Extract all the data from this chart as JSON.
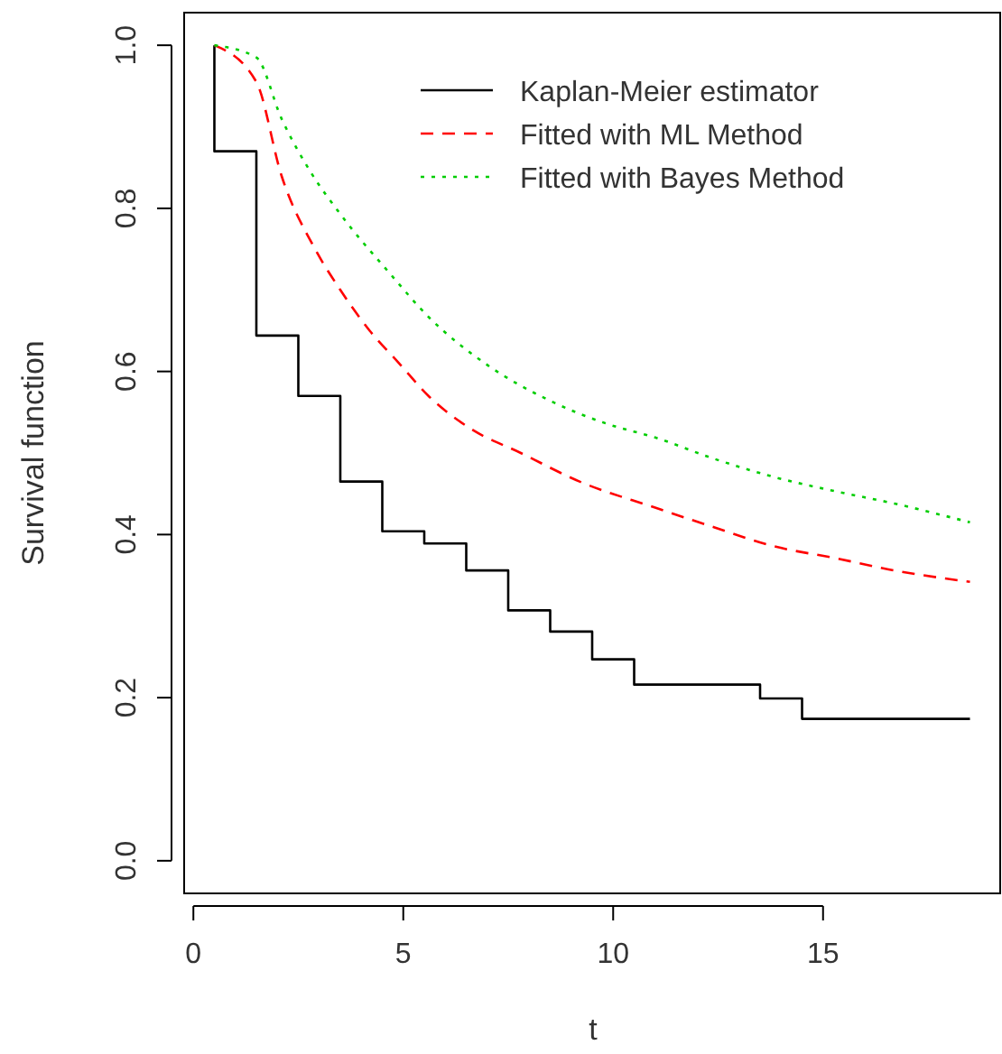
{
  "chart_data": {
    "type": "line",
    "xlabel": "t",
    "ylabel": "Survival function",
    "xlim": [
      -0.22,
      19.22
    ],
    "ylim": [
      -0.04,
      1.04
    ],
    "xticks": [
      0,
      5,
      10,
      15
    ],
    "yticks": [
      {
        "value": 0,
        "label": "0.0"
      },
      {
        "value": 0.2,
        "label": "0.2"
      },
      {
        "value": 0.4,
        "label": "0.4"
      },
      {
        "value": 0.6,
        "label": "0.6"
      },
      {
        "value": 0.8,
        "label": "0.8"
      },
      {
        "value": 1,
        "label": "1.0"
      }
    ],
    "grid": false,
    "legend": "top right",
    "marker": "none",
    "series": [
      {
        "name": "Kaplan-Meier estimator",
        "type": "step",
        "color": "#000000",
        "line_style": "solid",
        "x": [
          0.5,
          0.5,
          1.5,
          2.5,
          3.5,
          4.5,
          5.5,
          6.5,
          7.5,
          8.5,
          9.5,
          10.5,
          13.5,
          14.5,
          18.5
        ],
        "values": [
          1.0,
          0.87,
          0.644,
          0.57,
          0.465,
          0.404,
          0.389,
          0.356,
          0.307,
          0.281,
          0.247,
          0.216,
          0.199,
          0.174,
          0.174
        ]
      },
      {
        "name": "Fitted with ML Method",
        "color": "#ff0000",
        "line_style": "dashed",
        "x": [
          0.5,
          1.5,
          2.1,
          2.9,
          3.5,
          4.2,
          4.9,
          5.6,
          6.6,
          7.8,
          9.2,
          11.0,
          12.4,
          13.8,
          15.3,
          16.7,
          18.5
        ],
        "values": [
          1.0,
          0.955,
          0.84,
          0.75,
          0.7,
          0.65,
          0.61,
          0.57,
          0.53,
          0.5,
          0.465,
          0.433,
          0.409,
          0.386,
          0.371,
          0.356,
          0.342
        ]
      },
      {
        "name": "Fitted with Bayes Method",
        "color": "#00cd00",
        "line_style": "dotted",
        "x": [
          0.5,
          1.5,
          2.1,
          2.8,
          3.5,
          4.7,
          5.6,
          7.0,
          8.5,
          9.9,
          11.0,
          12.4,
          13.8,
          15.3,
          16.7,
          18.5
        ],
        "values": [
          1.0,
          0.985,
          0.91,
          0.844,
          0.793,
          0.719,
          0.667,
          0.608,
          0.564,
          0.535,
          0.519,
          0.493,
          0.471,
          0.453,
          0.438,
          0.415
        ]
      }
    ]
  }
}
